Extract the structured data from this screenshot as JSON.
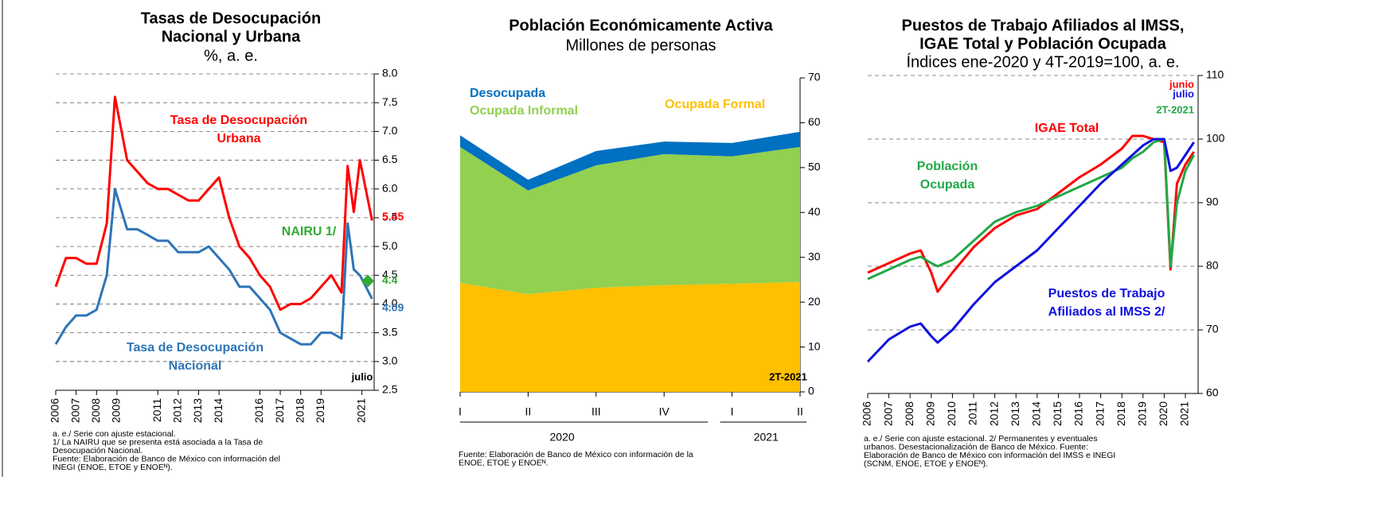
{
  "chart_data": [
    {
      "type": "line",
      "title": [
        "Tasas de Desocupación",
        "Nacional y Urbana"
      ],
      "subtitle": "%, a. e.",
      "x": [
        2006,
        2006.5,
        2007,
        2007.5,
        2008,
        2008.5,
        2008.9,
        2009.5,
        2010,
        2010.5,
        2011,
        2011.5,
        2012,
        2012.5,
        2013,
        2013.5,
        2014,
        2014.5,
        2015,
        2015.5,
        2016,
        2016.5,
        2017,
        2017.5,
        2018,
        2018.5,
        2019,
        2019.5,
        2020,
        2020.3,
        2020.6,
        2020.9,
        2021.5
      ],
      "series": [
        {
          "name": [
            "Tasa de Desocupación",
            "Urbana"
          ],
          "color": "#ff0000",
          "values": [
            4.3,
            4.8,
            4.8,
            4.7,
            4.7,
            5.4,
            7.6,
            6.5,
            6.3,
            6.1,
            6.0,
            6.0,
            5.9,
            5.8,
            5.8,
            6.0,
            6.2,
            5.5,
            5.0,
            4.8,
            4.5,
            4.3,
            3.9,
            4.0,
            4.0,
            4.1,
            4.3,
            4.5,
            4.2,
            6.4,
            5.6,
            6.5,
            5.45
          ]
        },
        {
          "name": [
            "Tasa de Desocupación",
            "Nacional"
          ],
          "color": "#2e75b6",
          "values": [
            3.3,
            3.6,
            3.8,
            3.8,
            3.9,
            4.5,
            6.0,
            5.3,
            5.3,
            5.2,
            5.1,
            5.1,
            4.9,
            4.9,
            4.9,
            5.0,
            4.8,
            4.6,
            4.3,
            4.3,
            4.1,
            3.9,
            3.5,
            3.4,
            3.3,
            3.3,
            3.5,
            3.5,
            3.4,
            5.4,
            4.6,
            4.5,
            4.09
          ]
        }
      ],
      "reference": {
        "name": "NAIRU 1/",
        "value": 4.4,
        "color": "#33aa33"
      },
      "annotations": [
        "julio"
      ],
      "xlim": [
        2006,
        2021.6
      ],
      "xticks": [
        2006,
        2007,
        2008,
        2009,
        2011,
        2012,
        2013,
        2014,
        2016,
        2017,
        2018,
        2019,
        2021
      ],
      "ylim": [
        2.5,
        8
      ],
      "yticks": [
        2.5,
        {
          "value": 3,
          "label": "3.0"
        },
        3.5,
        {
          "value": 4,
          "label": "4.0"
        },
        4.5,
        {
          "value": 5,
          "label": "5.0"
        },
        5.5,
        {
          "value": 6,
          "label": "6.0"
        },
        6.5,
        {
          "value": 7,
          "label": "7.0"
        },
        7.5,
        {
          "value": 8,
          "label": "8.0"
        }
      ],
      "grid": true,
      "notes": [
        "a. e./ Serie con ajuste estacional.",
        "1/ La NAIRU que se presenta está asociada a la Tasa de",
        "Desocupación Nacional.",
        "Fuente: Elaboración de Banco de México con información del",
        "INEGI (ENOE, ETOE y ENOEᴺ)."
      ]
    },
    {
      "type": "area",
      "title": [
        "Población Económicamente Activa"
      ],
      "subtitle": "Millones de personas",
      "categories": [
        "I",
        "II",
        "III",
        "IV",
        "I",
        "II"
      ],
      "category_groups": [
        "2020",
        "2020",
        "2020",
        "2020",
        "2021",
        "2021"
      ],
      "series": [
        {
          "name": "Ocupada Formal",
          "color": "#ffc000",
          "values": [
            24.3,
            21.8,
            23.2,
            23.8,
            24.1,
            24.5
          ]
        },
        {
          "name": "Ocupada Informal",
          "color": "#92d050",
          "values": [
            30.3,
            23.1,
            27.3,
            29.2,
            28.4,
            30.1
          ]
        },
        {
          "name": "Desocupada",
          "color": "#0070c0",
          "values": [
            2.6,
            2.4,
            3.2,
            2.8,
            3.0,
            3.4
          ]
        }
      ],
      "stacked": true,
      "annotations": [
        "2T-2021"
      ],
      "ylim": [
        0,
        70
      ],
      "yticks": [
        0,
        10,
        20,
        30,
        40,
        50,
        60,
        70
      ],
      "grid": false,
      "notes": [
        "Fuente: Elaboración de Banco de México con información de la",
        "ENOE, ETOE  y  ENOEᴺ."
      ]
    },
    {
      "type": "line",
      "title": [
        "Puestos de Trabajo Afiliados al IMSS,",
        "IGAE Total y Población Ocupada"
      ],
      "subtitle": "Índices ene-2020 y 4T-2019=100, a. e.",
      "x": [
        2006,
        2007,
        2008,
        2008.5,
        2009,
        2009.3,
        2010,
        2011,
        2012,
        2013,
        2014,
        2015,
        2016,
        2017,
        2018,
        2018.5,
        2019,
        2019.5,
        2020,
        2020.3,
        2020.6,
        2021,
        2021.4
      ],
      "series": [
        {
          "name": [
            "IGAE Total"
          ],
          "color": "#ff0000",
          "period": "junio",
          "values": [
            79,
            80.5,
            82,
            82.5,
            79,
            76,
            79,
            83,
            86,
            88,
            89,
            91.5,
            94,
            96,
            98.5,
            100.5,
            100.5,
            100,
            99.5,
            79.5,
            93,
            96,
            98
          ]
        },
        {
          "name": [
            "Población",
            "Ocupada"
          ],
          "color": "#22a846",
          "period": "2T-2021",
          "values": [
            78,
            79.5,
            81,
            81.5,
            80.5,
            80,
            81,
            84,
            87,
            88.5,
            89.5,
            91,
            92.5,
            94,
            95.5,
            97,
            98,
            99.5,
            100,
            80,
            90,
            95,
            97.5
          ]
        },
        {
          "name": [
            "Puestos de Trabajo",
            "Afiliados al IMSS 2/"
          ],
          "color": "#1010e0",
          "period": "julio",
          "values": [
            65,
            68.5,
            70.5,
            71,
            69,
            68,
            70,
            74,
            77.5,
            80,
            82.5,
            86,
            89.5,
            93,
            96,
            97.5,
            99,
            100,
            100,
            95,
            95.5,
            97.5,
            99.5
          ]
        }
      ],
      "xlim": [
        2006,
        2021.6
      ],
      "xticks": [
        2006,
        2007,
        2008,
        2009,
        2010,
        2011,
        2012,
        2013,
        2014,
        2015,
        2016,
        2017,
        2018,
        2019,
        2020,
        2021
      ],
      "ylim": [
        60,
        110
      ],
      "yticks": [
        60,
        70,
        80,
        90,
        100,
        110
      ],
      "grid": true,
      "notes": [
        "a. e./ Serie con ajuste estacional. 2/ Permanentes y eventuales",
        "urbanos. Desestacionalización de Banco de México. Fuente:",
        "Elaboración de Banco de México con información del IMSS e INEGI",
        "(SCNM, ENOE, ETOE y ENOEᴺ)."
      ]
    }
  ]
}
